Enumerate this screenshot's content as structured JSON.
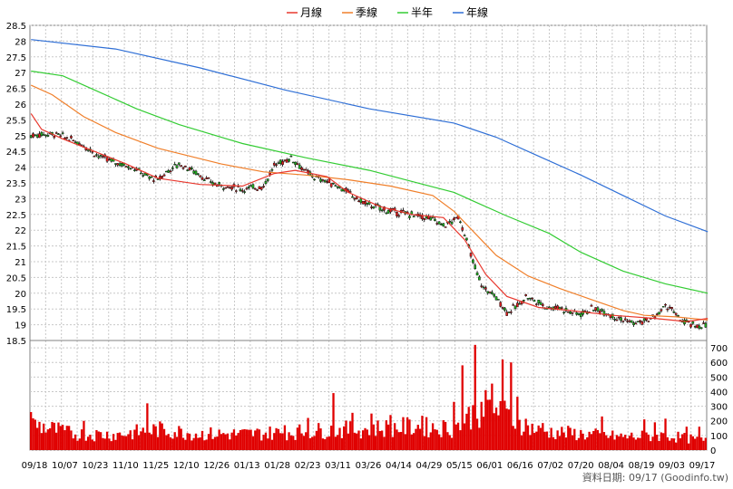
{
  "chart_data": {
    "type": "candlestick",
    "legend": [
      {
        "label": "月線",
        "color": "#e8382e"
      },
      {
        "label": "季線",
        "color": "#f07f2a"
      },
      {
        "label": "半年",
        "color": "#33cc33"
      },
      {
        "label": "年線",
        "color": "#2f6fd6"
      }
    ],
    "price_axis": {
      "ticks": [
        "18.5",
        "19",
        "19.5",
        "20",
        "20.5",
        "21",
        "21.5",
        "22",
        "22.5",
        "23",
        "23.5",
        "24",
        "24.5",
        "25",
        "25.5",
        "26",
        "26.5",
        "27",
        "27.5",
        "28",
        "28.5"
      ],
      "ylim": [
        18.5,
        28.5
      ]
    },
    "volume_axis": {
      "ticks": [
        "0",
        "100",
        "200",
        "300",
        "400",
        "500",
        "600",
        "700"
      ],
      "ylim": [
        0,
        750
      ]
    },
    "x_ticks": [
      "09/18",
      "10/07",
      "10/23",
      "11/10",
      "11/25",
      "12/10",
      "12/26",
      "01/13",
      "01/28",
      "02/23",
      "03/11",
      "03/26",
      "04/14",
      "04/29",
      "05/15",
      "06/01",
      "06/16",
      "07/02",
      "07/20",
      "08/04",
      "08/19",
      "09/03",
      "09/17"
    ],
    "ma_year": [
      [
        0,
        28.05
      ],
      [
        40,
        27.75
      ],
      [
        80,
        27.15
      ],
      [
        120,
        26.45
      ],
      [
        160,
        25.85
      ],
      [
        200,
        25.4
      ],
      [
        220,
        24.95
      ],
      [
        240,
        24.35
      ],
      [
        260,
        23.75
      ],
      [
        280,
        23.1
      ],
      [
        300,
        22.45
      ],
      [
        320,
        21.95
      ]
    ],
    "ma_half": [
      [
        0,
        27.05
      ],
      [
        15,
        26.9
      ],
      [
        30,
        26.45
      ],
      [
        50,
        25.85
      ],
      [
        70,
        25.35
      ],
      [
        100,
        24.75
      ],
      [
        130,
        24.3
      ],
      [
        160,
        23.9
      ],
      [
        180,
        23.55
      ],
      [
        200,
        23.2
      ],
      [
        210,
        22.9
      ],
      [
        225,
        22.45
      ],
      [
        245,
        21.9
      ],
      [
        260,
        21.3
      ],
      [
        280,
        20.7
      ],
      [
        300,
        20.3
      ],
      [
        320,
        20.0
      ]
    ],
    "ma_season": [
      [
        0,
        26.6
      ],
      [
        10,
        26.3
      ],
      [
        25,
        25.6
      ],
      [
        40,
        25.1
      ],
      [
        60,
        24.6
      ],
      [
        90,
        24.1
      ],
      [
        110,
        23.85
      ],
      [
        130,
        23.75
      ],
      [
        150,
        23.6
      ],
      [
        170,
        23.4
      ],
      [
        190,
        23.1
      ],
      [
        200,
        22.6
      ],
      [
        210,
        21.9
      ],
      [
        220,
        21.2
      ],
      [
        235,
        20.55
      ],
      [
        250,
        20.15
      ],
      [
        265,
        19.8
      ],
      [
        280,
        19.45
      ],
      [
        290,
        19.3
      ],
      [
        305,
        19.25
      ],
      [
        320,
        19.15
      ]
    ],
    "ma_month": [
      [
        0,
        25.7
      ],
      [
        5,
        25.2
      ],
      [
        15,
        24.9
      ],
      [
        30,
        24.5
      ],
      [
        45,
        24.1
      ],
      [
        60,
        23.65
      ],
      [
        80,
        23.45
      ],
      [
        100,
        23.4
      ],
      [
        115,
        23.8
      ],
      [
        125,
        23.9
      ],
      [
        140,
        23.7
      ],
      [
        150,
        23.2
      ],
      [
        165,
        22.75
      ],
      [
        180,
        22.5
      ],
      [
        195,
        22.4
      ],
      [
        205,
        21.7
      ],
      [
        215,
        20.6
      ],
      [
        225,
        19.9
      ],
      [
        240,
        19.55
      ],
      [
        255,
        19.45
      ],
      [
        275,
        19.3
      ],
      [
        295,
        19.2
      ],
      [
        310,
        19.1
      ],
      [
        320,
        19.2
      ]
    ],
    "price_path": [
      [
        0,
        25.0
      ],
      [
        5,
        25.05
      ],
      [
        12,
        25.05
      ],
      [
        18,
        24.9
      ],
      [
        25,
        24.7
      ],
      [
        32,
        24.35
      ],
      [
        40,
        24.15
      ],
      [
        48,
        24.0
      ],
      [
        55,
        23.7
      ],
      [
        60,
        23.6
      ],
      [
        65,
        23.9
      ],
      [
        70,
        24.1
      ],
      [
        75,
        23.95
      ],
      [
        80,
        23.75
      ],
      [
        85,
        23.5
      ],
      [
        92,
        23.4
      ],
      [
        100,
        23.3
      ],
      [
        105,
        23.35
      ],
      [
        110,
        23.4
      ],
      [
        115,
        24.05
      ],
      [
        118,
        24.15
      ],
      [
        123,
        24.3
      ],
      [
        127,
        24.05
      ],
      [
        130,
        23.85
      ],
      [
        135,
        23.65
      ],
      [
        140,
        23.55
      ],
      [
        145,
        23.4
      ],
      [
        150,
        23.2
      ],
      [
        155,
        22.95
      ],
      [
        160,
        22.8
      ],
      [
        170,
        22.6
      ],
      [
        180,
        22.5
      ],
      [
        190,
        22.35
      ],
      [
        195,
        22.15
      ],
      [
        200,
        22.3
      ],
      [
        202,
        22.45
      ],
      [
        205,
        21.9
      ],
      [
        208,
        21.2
      ],
      [
        211,
        20.6
      ],
      [
        214,
        20.15
      ],
      [
        218,
        20.0
      ],
      [
        222,
        19.7
      ],
      [
        225,
        19.4
      ],
      [
        230,
        19.6
      ],
      [
        234,
        19.9
      ],
      [
        240,
        19.7
      ],
      [
        245,
        19.55
      ],
      [
        250,
        19.55
      ],
      [
        255,
        19.4
      ],
      [
        260,
        19.35
      ],
      [
        265,
        19.5
      ],
      [
        270,
        19.45
      ],
      [
        275,
        19.3
      ],
      [
        280,
        19.15
      ],
      [
        285,
        19.05
      ],
      [
        290,
        19.1
      ],
      [
        295,
        19.25
      ],
      [
        300,
        19.6
      ],
      [
        303,
        19.5
      ],
      [
        306,
        19.2
      ],
      [
        310,
        19.05
      ],
      [
        315,
        18.95
      ],
      [
        320,
        19.0
      ]
    ],
    "volume_profile": [
      [
        0,
        180
      ],
      [
        20,
        110
      ],
      [
        40,
        105
      ],
      [
        60,
        140
      ],
      [
        80,
        110
      ],
      [
        100,
        110
      ],
      [
        120,
        120
      ],
      [
        140,
        135
      ],
      [
        160,
        145
      ],
      [
        180,
        160
      ],
      [
        200,
        150
      ],
      [
        210,
        260
      ],
      [
        218,
        300
      ],
      [
        228,
        210
      ],
      [
        240,
        130
      ],
      [
        260,
        110
      ],
      [
        280,
        90
      ],
      [
        300,
        100
      ],
      [
        320,
        60
      ]
    ],
    "volume_spikes": [
      [
        0,
        260
      ],
      [
        14,
        165
      ],
      [
        25,
        200
      ],
      [
        55,
        320
      ],
      [
        120,
        170
      ],
      [
        131,
        220
      ],
      [
        143,
        390
      ],
      [
        152,
        255
      ],
      [
        161,
        250
      ],
      [
        170,
        240
      ],
      [
        185,
        235
      ],
      [
        200,
        330
      ],
      [
        204,
        580
      ],
      [
        210,
        720
      ],
      [
        213,
        330
      ],
      [
        218,
        455
      ],
      [
        223,
        620
      ],
      [
        227,
        600
      ],
      [
        230,
        365
      ],
      [
        242,
        185
      ],
      [
        270,
        230
      ],
      [
        290,
        210
      ],
      [
        295,
        190
      ],
      [
        300,
        215
      ],
      [
        310,
        160
      ],
      [
        316,
        160
      ]
    ],
    "source_text": "資料日期: 09/17  (Goodinfo.tw)"
  }
}
